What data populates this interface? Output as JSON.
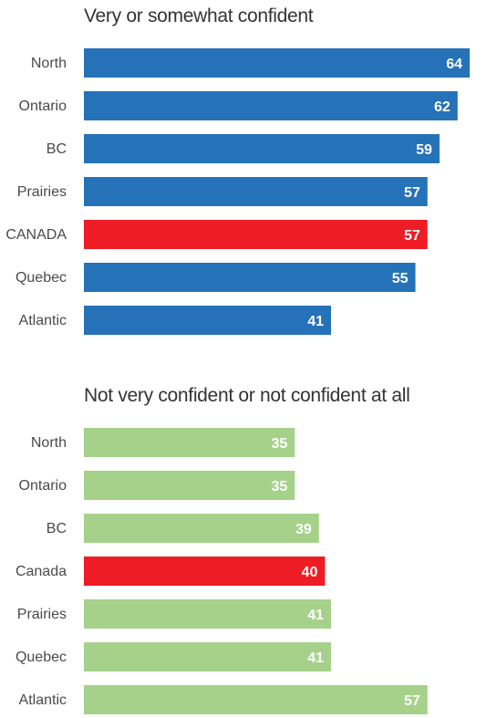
{
  "chart_data": [
    {
      "type": "bar",
      "orientation": "horizontal",
      "title": "Very or somewhat confident",
      "categories": [
        "North",
        "Ontario",
        "BC",
        "Prairies",
        "CANADA",
        "Quebec",
        "Atlantic"
      ],
      "values": [
        64,
        62,
        59,
        57,
        57,
        55,
        41
      ],
      "bar_color": "#2572b8",
      "highlight_category": "CANADA",
      "highlight_color": "#ee1c25",
      "value_labels": true,
      "axis_visible": false,
      "grid": false,
      "xlim": [
        0,
        64
      ]
    },
    {
      "type": "bar",
      "orientation": "horizontal",
      "title": "Not very confident or not confident at all",
      "categories": [
        "North",
        "Ontario",
        "BC",
        "Canada",
        "Prairies",
        "Quebec",
        "Atlantic"
      ],
      "values": [
        35,
        35,
        39,
        40,
        41,
        41,
        57
      ],
      "bar_color": "#a6d18b",
      "highlight_category": "Canada",
      "highlight_color": "#ee1c25",
      "value_labels": true,
      "axis_visible": false,
      "grid": false,
      "xlim": [
        0,
        64
      ]
    }
  ]
}
